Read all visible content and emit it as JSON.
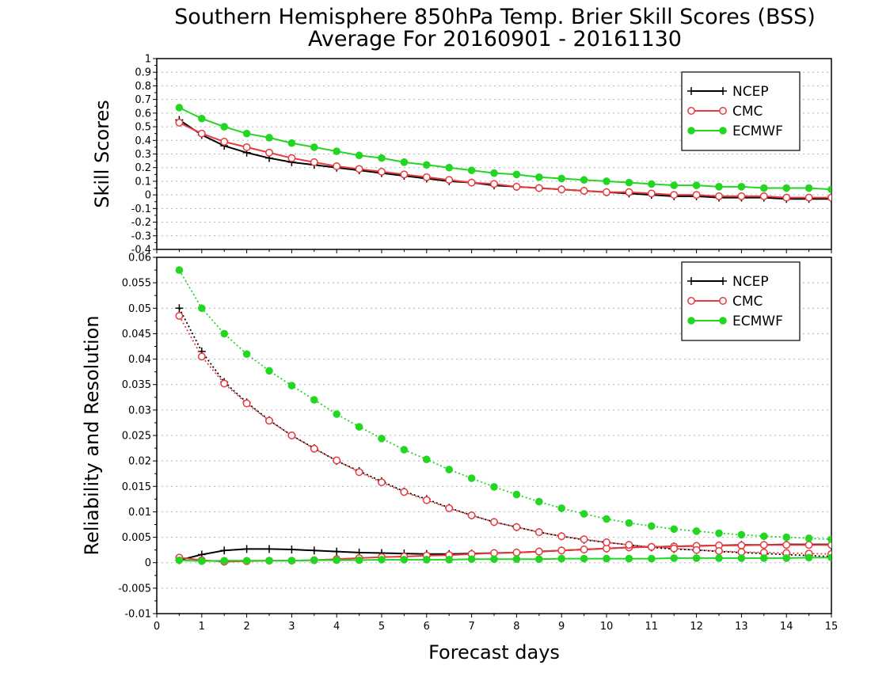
{
  "title_line1": "Southern Hemisphere 850hPa Temp. Brier Skill Scores (BSS)",
  "title_line2": "Average For 20160901 - 20161130",
  "xlabel": "Forecast days",
  "colors": {
    "NCEP": "#000000",
    "CMC": "#e8393f",
    "ECMWF": "#22d622"
  },
  "chart_data": [
    {
      "type": "line",
      "ylabel": "Skill Scores",
      "ylim": [
        -0.4,
        1
      ],
      "xlim": [
        0,
        15
      ],
      "x_ticks": [
        "0",
        "1",
        "2",
        "3",
        "4",
        "5",
        "6",
        "7",
        "8",
        "9",
        "10",
        "11",
        "12",
        "13",
        "14",
        "15"
      ],
      "y_ticks": [
        "-0.4",
        "-0.3",
        "-0.2",
        "-0.1",
        "0",
        "0.1",
        "0.2",
        "0.3",
        "0.4",
        "0.5",
        "0.6",
        "0.7",
        "0.8",
        "0.9",
        "1"
      ],
      "grid": true,
      "legend_position": "top-right",
      "x": [
        0.5,
        1,
        1.5,
        2,
        2.5,
        3,
        3.5,
        4,
        4.5,
        5,
        5.5,
        6,
        6.5,
        7,
        7.5,
        8,
        8.5,
        9,
        9.5,
        10,
        10.5,
        11,
        11.5,
        12,
        12.5,
        13,
        13.5,
        14,
        14.5,
        15
      ],
      "series": [
        {
          "name": "NCEP",
          "marker": "plus",
          "line": "solid",
          "values": [
            0.55,
            0.44,
            0.36,
            0.31,
            0.27,
            0.24,
            0.22,
            0.2,
            0.18,
            0.16,
            0.14,
            0.12,
            0.1,
            0.09,
            0.07,
            0.06,
            0.05,
            0.04,
            0.03,
            0.02,
            0.01,
            0.0,
            -0.01,
            -0.01,
            -0.02,
            -0.02,
            -0.02,
            -0.03,
            -0.03,
            -0.03
          ]
        },
        {
          "name": "CMC",
          "marker": "circle-open",
          "line": "solid",
          "values": [
            0.53,
            0.45,
            0.39,
            0.35,
            0.31,
            0.27,
            0.24,
            0.21,
            0.19,
            0.17,
            0.15,
            0.13,
            0.11,
            0.09,
            0.08,
            0.06,
            0.05,
            0.04,
            0.03,
            0.02,
            0.02,
            0.01,
            0.0,
            0.0,
            -0.01,
            -0.01,
            -0.01,
            -0.02,
            -0.02,
            -0.02
          ]
        },
        {
          "name": "ECMWF",
          "marker": "circle-filled",
          "line": "solid",
          "values": [
            0.64,
            0.56,
            0.5,
            0.45,
            0.42,
            0.38,
            0.35,
            0.32,
            0.29,
            0.27,
            0.24,
            0.22,
            0.2,
            0.18,
            0.16,
            0.15,
            0.13,
            0.12,
            0.11,
            0.1,
            0.09,
            0.08,
            0.07,
            0.07,
            0.06,
            0.06,
            0.05,
            0.05,
            0.05,
            0.04
          ]
        }
      ]
    },
    {
      "type": "line",
      "ylabel": "Reliability and Resolution",
      "ylim": [
        -0.01,
        0.06
      ],
      "xlim": [
        0,
        15
      ],
      "x_ticks": [
        "0",
        "1",
        "2",
        "3",
        "4",
        "5",
        "6",
        "7",
        "8",
        "9",
        "10",
        "11",
        "12",
        "13",
        "14",
        "15"
      ],
      "y_ticks": [
        "-0.01",
        "-0.005",
        "0",
        "0.005",
        "0.01",
        "0.015",
        "0.02",
        "0.025",
        "0.03",
        "0.035",
        "0.04",
        "0.045",
        "0.05",
        "0.055",
        "0.06"
      ],
      "grid": true,
      "legend_position": "top-right",
      "x": [
        0.5,
        1,
        1.5,
        2,
        2.5,
        3,
        3.5,
        4,
        4.5,
        5,
        5.5,
        6,
        6.5,
        7,
        7.5,
        8,
        8.5,
        9,
        9.5,
        10,
        10.5,
        11,
        11.5,
        12,
        12.5,
        13,
        13.5,
        14,
        14.5,
        15
      ],
      "series": [
        {
          "name": "NCEP",
          "marker": "plus",
          "line": "solid",
          "values": [
            0.0005,
            0.0016,
            0.0024,
            0.0027,
            0.0027,
            0.0026,
            0.0024,
            0.0022,
            0.002,
            0.0019,
            0.0018,
            0.0017,
            0.0017,
            0.0018,
            0.0019,
            0.002,
            0.0022,
            0.0024,
            0.0026,
            0.0028,
            0.003,
            0.0031,
            0.0032,
            0.0033,
            0.0034,
            0.0035,
            0.0035,
            0.0036,
            0.0036,
            0.0036
          ]
        },
        {
          "name": "NCEP",
          "marker": "plus",
          "line": "dotted",
          "values": [
            0.05,
            0.0415,
            0.0355,
            0.0315,
            0.028,
            0.025,
            0.0225,
            0.02,
            0.018,
            0.016,
            0.014,
            0.0125,
            0.0108,
            0.0093,
            0.008,
            0.007,
            0.006,
            0.0052,
            0.0045,
            0.004,
            0.0035,
            0.003,
            0.0027,
            0.0025,
            0.0022,
            0.002,
            0.0018,
            0.0016,
            0.0014,
            0.0012
          ]
        },
        {
          "name": "CMC",
          "marker": "circle-open",
          "line": "solid",
          "values": [
            0.001,
            0.0005,
            0.0002,
            0.0003,
            0.0004,
            0.0004,
            0.0005,
            0.0007,
            0.0009,
            0.0011,
            0.0012,
            0.0014,
            0.0015,
            0.0017,
            0.0019,
            0.002,
            0.0022,
            0.0024,
            0.0026,
            0.0028,
            0.003,
            0.0031,
            0.0032,
            0.0033,
            0.0034,
            0.0034,
            0.0035,
            0.0035,
            0.0035,
            0.0035
          ]
        },
        {
          "name": "CMC",
          "marker": "circle-open",
          "line": "dotted",
          "values": [
            0.0485,
            0.0405,
            0.0352,
            0.0313,
            0.0279,
            0.025,
            0.0224,
            0.0201,
            0.0178,
            0.0158,
            0.0139,
            0.0123,
            0.0107,
            0.0093,
            0.008,
            0.007,
            0.006,
            0.0052,
            0.0046,
            0.004,
            0.0035,
            0.0031,
            0.0028,
            0.0025,
            0.0023,
            0.0021,
            0.002,
            0.0019,
            0.0018,
            0.0017
          ]
        },
        {
          "name": "ECMWF",
          "marker": "circle-filled",
          "line": "solid",
          "values": [
            0.0005,
            0.0003,
            0.0004,
            0.0004,
            0.0004,
            0.0004,
            0.0005,
            0.0005,
            0.0005,
            0.0006,
            0.0006,
            0.0006,
            0.0006,
            0.0007,
            0.0007,
            0.0007,
            0.0007,
            0.0008,
            0.0008,
            0.0008,
            0.0008,
            0.0008,
            0.0009,
            0.0009,
            0.0009,
            0.0009,
            0.0009,
            0.0009,
            0.001,
            0.001
          ]
        },
        {
          "name": "ECMWF",
          "marker": "circle-filled",
          "line": "dotted",
          "values": [
            0.0575,
            0.05,
            0.045,
            0.041,
            0.0377,
            0.0348,
            0.032,
            0.0292,
            0.0267,
            0.0244,
            0.0222,
            0.0203,
            0.0183,
            0.0166,
            0.0149,
            0.0134,
            0.012,
            0.0107,
            0.0096,
            0.0086,
            0.0078,
            0.0072,
            0.0066,
            0.0062,
            0.0058,
            0.0055,
            0.0052,
            0.005,
            0.0048,
            0.0046
          ]
        }
      ]
    }
  ]
}
